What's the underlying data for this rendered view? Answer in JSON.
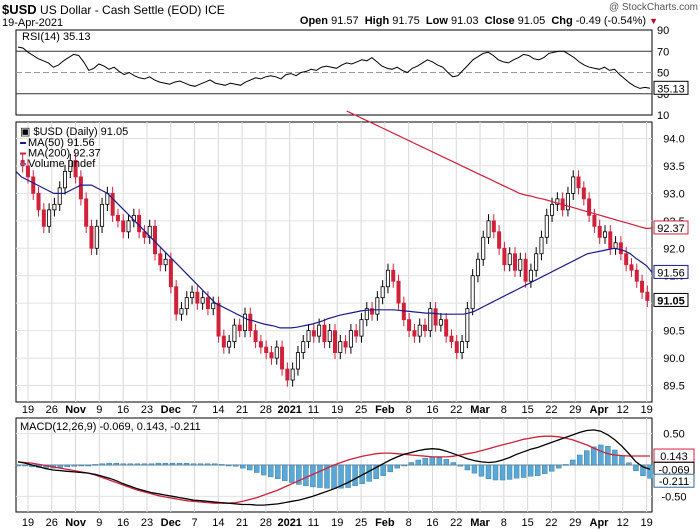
{
  "header": {
    "symbol": "$USD",
    "name": "US Dollar - Cash Settle (EOD)",
    "exchange": "ICE",
    "date": "19-Apr-2021",
    "open_label": "Open",
    "open": "91.57",
    "high_label": "High",
    "high": "91.75",
    "low_label": "Low",
    "low": "91.03",
    "close_label": "Close",
    "close": "91.05",
    "chg_label": "Chg",
    "chg": "-0.49 (-0.54%)",
    "copyright": "@ StockCharts.com"
  },
  "chart_data": [
    {
      "type": "line",
      "panel": "rsi",
      "title": "RSI(14) 35.13",
      "ylim": [
        10,
        90
      ],
      "ticks": [
        10,
        30,
        50,
        70,
        90
      ],
      "levels": [
        30,
        50,
        70
      ],
      "last_label": "35.13",
      "values": [
        74,
        73,
        69,
        66,
        63,
        61,
        59,
        55,
        57,
        61,
        64,
        67,
        66,
        60,
        52,
        54,
        58,
        56,
        53,
        55,
        51,
        48,
        50,
        47,
        45,
        44,
        46,
        43,
        41,
        40,
        39,
        41,
        42,
        40,
        38,
        37,
        39,
        41,
        43,
        40,
        39,
        38,
        40,
        39,
        38,
        41,
        43,
        45,
        44,
        46,
        47,
        46,
        44,
        48,
        49,
        47,
        50,
        51,
        53,
        52,
        55,
        56,
        55,
        54,
        57,
        59,
        58,
        60,
        62,
        61,
        64,
        60,
        56,
        54,
        53,
        55,
        52,
        50,
        54,
        56,
        59,
        62,
        60,
        57,
        55,
        50,
        46,
        47,
        52,
        57,
        62,
        65,
        68,
        69,
        66,
        62,
        60,
        59,
        62,
        64,
        67,
        66,
        63,
        62,
        64,
        68,
        69,
        70,
        70,
        67,
        64,
        60,
        57,
        55,
        54,
        53,
        55,
        52,
        53,
        48,
        44,
        40,
        37,
        35,
        36,
        35.13
      ]
    },
    {
      "type": "candlestick",
      "panel": "price",
      "title": "$USD (Daily) 91.05",
      "legend": [
        "MA(50) 91.56",
        "MA(200) 92.37",
        "Volume undef"
      ],
      "legend_colors": [
        "#1a1a8c",
        "#d0203a",
        "#6a6aa8"
      ],
      "ylim": [
        89.2,
        94.3
      ],
      "ticks": [
        89.5,
        90.0,
        90.5,
        91.0,
        91.5,
        92.0,
        92.5,
        93.0,
        93.5,
        94.0
      ],
      "last_labels": {
        "ma200": "92.37",
        "ma50": "91.56",
        "close": "91.05"
      },
      "closes": [
        93.5,
        93.3,
        93.0,
        92.7,
        92.4,
        92.7,
        92.8,
        93.1,
        93.4,
        93.6,
        93.3,
        92.9,
        92.4,
        92.0,
        92.4,
        92.8,
        93.0,
        92.6,
        92.5,
        92.3,
        92.5,
        92.6,
        92.3,
        92.2,
        92.4,
        91.9,
        91.7,
        91.8,
        91.3,
        90.8,
        90.9,
        91.1,
        91.2,
        91.0,
        91.1,
        90.9,
        91.0,
        90.4,
        90.2,
        90.3,
        90.6,
        90.5,
        90.8,
        90.5,
        90.3,
        90.2,
        90.1,
        90.0,
        90.2,
        89.8,
        89.6,
        89.8,
        90.1,
        90.3,
        90.5,
        90.4,
        90.6,
        90.3,
        90.5,
        90.1,
        90.3,
        90.2,
        90.5,
        90.4,
        90.7,
        90.9,
        90.8,
        91.1,
        91.3,
        91.6,
        91.4,
        91.0,
        90.7,
        90.5,
        90.4,
        90.6,
        90.5,
        90.9,
        90.6,
        90.7,
        90.4,
        90.3,
        90.1,
        90.3,
        90.9,
        91.5,
        91.8,
        92.2,
        92.5,
        92.3,
        92.0,
        91.7,
        91.9,
        91.6,
        91.8,
        91.4,
        91.6,
        91.9,
        92.2,
        92.6,
        92.8,
        92.9,
        92.7,
        93.0,
        93.3,
        93.1,
        92.9,
        92.6,
        92.4,
        92.2,
        92.3,
        92.0,
        92.1,
        91.9,
        91.7,
        91.6,
        91.4,
        91.2,
        91.05
      ],
      "ma50": [
        93.4,
        93.3,
        93.25,
        93.2,
        93.15,
        93.1,
        93.05,
        93.0,
        93.0,
        93.0,
        93.05,
        93.1,
        93.15,
        93.15,
        93.15,
        93.1,
        93.05,
        93.0,
        92.9,
        92.8,
        92.7,
        92.6,
        92.5,
        92.4,
        92.3,
        92.2,
        92.1,
        92.0,
        91.9,
        91.8,
        91.7,
        91.6,
        91.5,
        91.4,
        91.3,
        91.2,
        91.1,
        91.0,
        90.95,
        90.9,
        90.85,
        90.8,
        90.75,
        90.7,
        90.68,
        90.65,
        90.62,
        90.6,
        90.58,
        90.55,
        90.55,
        90.55,
        90.56,
        90.58,
        90.6,
        90.62,
        90.65,
        90.68,
        90.72,
        90.75,
        90.78,
        90.8,
        90.82,
        90.84,
        90.86,
        90.87,
        90.88,
        90.88,
        90.88,
        90.88,
        90.88,
        90.87,
        90.86,
        90.85,
        90.84,
        90.83,
        90.82,
        90.82,
        90.81,
        90.8,
        90.8,
        90.8,
        90.8,
        90.8,
        90.82,
        90.85,
        90.9,
        90.95,
        91.0,
        91.05,
        91.1,
        91.15,
        91.2,
        91.25,
        91.3,
        91.35,
        91.4,
        91.45,
        91.5,
        91.55,
        91.6,
        91.65,
        91.7,
        91.75,
        91.8,
        91.85,
        91.9,
        91.92,
        91.94,
        91.96,
        91.98,
        92.0,
        91.98,
        91.95,
        91.9,
        91.82,
        91.75,
        91.68,
        91.56
      ],
      "ma200": [
        94.5,
        94.45,
        94.4,
        94.35,
        94.3,
        94.25,
        94.2,
        94.15,
        94.1,
        94.05,
        94.0,
        93.95,
        93.9,
        93.85,
        93.8,
        93.75,
        93.7,
        93.65,
        93.6,
        93.55,
        93.5,
        93.45,
        93.4,
        93.35,
        93.3,
        93.25,
        93.2,
        93.15,
        93.1,
        93.05,
        93.0,
        92.97,
        92.95,
        92.92,
        92.9,
        92.87,
        92.84,
        92.81,
        92.78,
        92.75,
        92.72,
        92.69,
        92.66,
        92.63,
        92.6,
        92.57,
        92.54,
        92.51,
        92.48,
        92.45,
        92.42,
        92.39,
        92.36,
        92.37
      ]
    },
    {
      "type": "line",
      "panel": "macd",
      "title": "MACD(12,26,9) -0.069, 0.143, -0.211",
      "ylim": [
        -0.75,
        0.75
      ],
      "ticks": [
        -0.5,
        0.0,
        0.5
      ],
      "last_labels": {
        "signal": "0.143",
        "macd": "-0.069",
        "hist": "-0.211"
      },
      "macd": [
        0.05,
        0.03,
        0.0,
        -0.03,
        -0.06,
        -0.08,
        -0.09,
        -0.1,
        -0.11,
        -0.12,
        -0.13,
        -0.15,
        -0.18,
        -0.21,
        -0.25,
        -0.3,
        -0.34,
        -0.38,
        -0.41,
        -0.44,
        -0.46,
        -0.48,
        -0.5,
        -0.52,
        -0.54,
        -0.56,
        -0.57,
        -0.58,
        -0.59,
        -0.6,
        -0.61,
        -0.62,
        -0.63,
        -0.63,
        -0.64,
        -0.64,
        -0.63,
        -0.62,
        -0.6,
        -0.58,
        -0.56,
        -0.53,
        -0.5,
        -0.46,
        -0.42,
        -0.38,
        -0.33,
        -0.28,
        -0.22,
        -0.16,
        -0.1,
        -0.04,
        0.02,
        0.08,
        0.13,
        0.17,
        0.2,
        0.23,
        0.25,
        0.26,
        0.25,
        0.22,
        0.18,
        0.14,
        0.1,
        0.07,
        0.05,
        0.04,
        0.05,
        0.08,
        0.12,
        0.17,
        0.21,
        0.25,
        0.28,
        0.32,
        0.36,
        0.4,
        0.44,
        0.48,
        0.52,
        0.55,
        0.56,
        0.54,
        0.48,
        0.4,
        0.3,
        0.18,
        0.05,
        -0.03,
        -0.069
      ],
      "signal": [
        0.05,
        0.04,
        0.03,
        0.01,
        -0.01,
        -0.03,
        -0.05,
        -0.07,
        -0.09,
        -0.11,
        -0.13,
        -0.16,
        -0.2,
        -0.24,
        -0.28,
        -0.32,
        -0.36,
        -0.4,
        -0.43,
        -0.46,
        -0.49,
        -0.51,
        -0.53,
        -0.55,
        -0.57,
        -0.58,
        -0.59,
        -0.6,
        -0.61,
        -0.61,
        -0.61,
        -0.6,
        -0.58,
        -0.55,
        -0.52,
        -0.48,
        -0.44,
        -0.4,
        -0.35,
        -0.3,
        -0.25,
        -0.2,
        -0.15,
        -0.1,
        -0.05,
        0.0,
        0.04,
        0.08,
        0.11,
        0.14,
        0.16,
        0.18,
        0.19,
        0.19,
        0.18,
        0.17,
        0.16,
        0.15,
        0.14,
        0.13,
        0.13,
        0.13,
        0.14,
        0.16,
        0.18,
        0.2,
        0.23,
        0.26,
        0.29,
        0.32,
        0.35,
        0.38,
        0.41,
        0.43,
        0.45,
        0.46,
        0.46,
        0.45,
        0.43,
        0.4,
        0.36,
        0.32,
        0.27,
        0.22,
        0.18,
        0.16,
        0.15,
        0.143,
        0.143,
        0.143,
        0.143
      ]
    }
  ],
  "x_axis": {
    "labels": [
      "19",
      "26",
      "Nov",
      "9",
      "16",
      "23",
      "Dec",
      "7",
      "14",
      "21",
      "28",
      "2021",
      "11",
      "19",
      "25",
      "Feb",
      "8",
      "16",
      "22",
      "Mar",
      "8",
      "15",
      "22",
      "29",
      "Apr",
      "12",
      "19"
    ],
    "bold": [
      "Nov",
      "Dec",
      "2021",
      "Feb",
      "Mar",
      "Apr"
    ]
  }
}
